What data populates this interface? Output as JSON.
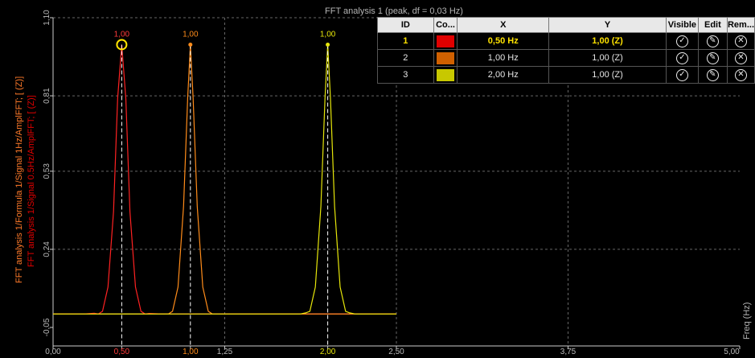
{
  "chart_data": {
    "type": "line",
    "title": "FFT analysis 1 (peak, df = 0,03 Hz)",
    "xlabel": "Freq (Hz)",
    "ylabels": [
      "FFT analysis 1/Formula 1/Signal 1Hz/AmplFFT; [ (Z)]",
      "FFT analysis 1/Signal 0.5Hz/AmplFFT; [ (Z)]"
    ],
    "xlim": [
      0,
      5
    ],
    "ylim": [
      -0.05,
      1.1
    ],
    "x_ticks": [
      "0,00",
      "0,50",
      "1,00",
      "1,25",
      "2,00",
      "2,50",
      "3,75",
      "5,00"
    ],
    "x_tick_values": [
      0,
      0.5,
      1.0,
      1.25,
      2.0,
      2.5,
      3.75,
      5.0
    ],
    "y_ticks": [
      "-0,05",
      "0,24",
      "0,53",
      "0,81",
      "1,10"
    ],
    "y_tick_values": [
      -0.05,
      0.24,
      0.53,
      0.81,
      1.1
    ],
    "grid": true,
    "series": [
      {
        "color": "#ff2222",
        "x": [
          0.0,
          0.22,
          0.3,
          0.33,
          0.36,
          0.4,
          0.44,
          0.47,
          0.5,
          0.53,
          0.56,
          0.6,
          0.64,
          0.67,
          0.7,
          0.8,
          2.5
        ],
        "y": [
          0.0,
          0.0,
          0.003,
          0.0,
          0.01,
          0.1,
          0.38,
          0.8,
          1.0,
          0.8,
          0.38,
          0.1,
          0.01,
          0.0,
          0.002,
          0.0,
          0.0
        ]
      },
      {
        "color": "#ff8c1a",
        "x": [
          0.0,
          0.84,
          0.87,
          0.91,
          0.95,
          0.98,
          1.0,
          1.02,
          1.05,
          1.09,
          1.13,
          1.16,
          2.5
        ],
        "y": [
          0.0,
          0.0,
          0.01,
          0.1,
          0.4,
          0.8,
          1.0,
          0.8,
          0.4,
          0.1,
          0.01,
          0.0,
          0.0
        ]
      },
      {
        "color": "#e6e60a",
        "x": [
          0.0,
          1.8,
          1.84,
          1.87,
          1.91,
          1.95,
          1.98,
          2.0,
          2.02,
          2.05,
          2.09,
          2.13,
          2.16,
          2.2,
          2.5
        ],
        "y": [
          0.0,
          0.0,
          0.004,
          0.01,
          0.1,
          0.4,
          0.8,
          1.0,
          0.8,
          0.4,
          0.1,
          0.01,
          0.004,
          0.0,
          0.0
        ]
      }
    ],
    "peak_labels": [
      {
        "x": 0.5,
        "y": 1.0,
        "text": "1,00",
        "color": "#ff3b3b"
      },
      {
        "x": 1.0,
        "y": 1.0,
        "text": "1,00",
        "color": "#ff8c1a"
      },
      {
        "x": 2.0,
        "y": 1.0,
        "text": "1,00",
        "color": "#e6e60a"
      }
    ]
  },
  "marker_table": {
    "headers": [
      "ID",
      "Co...",
      "X",
      "Y",
      "Visible",
      "Edit",
      "Rem..."
    ],
    "rows": [
      {
        "id": "1",
        "color": "#e00000",
        "x": "0,50 Hz",
        "y": "1,00  (Z)"
      },
      {
        "id": "2",
        "color": "#d06000",
        "x": "1,00 Hz",
        "y": "1,00  (Z)"
      },
      {
        "id": "3",
        "color": "#c8c800",
        "x": "2,00 Hz",
        "y": "1,00  (Z)"
      }
    ],
    "icons": {
      "visible": "check-circle-icon",
      "edit": "pencil-circle-icon",
      "remove": "x-circle-icon"
    }
  },
  "colors": {
    "axis": "#cccccc",
    "grid": "#666666",
    "ylabel1": "#ff7a2a",
    "ylabel2": "#e00000"
  }
}
